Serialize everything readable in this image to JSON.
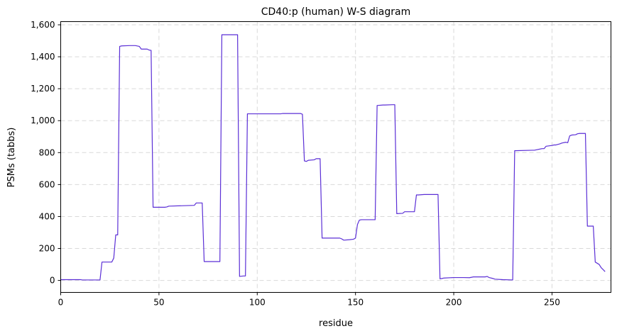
{
  "chart_data": {
    "type": "line",
    "title": "CD40:p (human) W-S diagram",
    "xlabel": "residue",
    "ylabel": "PSMs (tabbs)",
    "xlim": [
      0,
      280
    ],
    "ylim": [
      -75,
      1620
    ],
    "xticks": [
      0,
      50,
      100,
      150,
      200,
      250
    ],
    "xtick_labels": [
      "0",
      "50",
      "100",
      "150",
      "200",
      "250"
    ],
    "yticks": [
      0,
      200,
      400,
      600,
      800,
      1000,
      1200,
      1400,
      1600
    ],
    "ytick_labels": [
      "0",
      "200",
      "400",
      "600",
      "800",
      "1,000",
      "1,200",
      "1,400",
      "1,600"
    ],
    "grid": true,
    "line_color": "#5b2fd6",
    "series": [
      {
        "x": [
          0,
          10,
          11,
          20,
          21,
          26,
          27,
          28,
          29,
          30,
          31,
          35,
          38,
          40,
          41,
          44,
          45,
          46,
          47,
          53,
          54,
          55,
          68,
          69,
          72,
          73,
          81,
          82,
          90,
          91,
          93,
          94,
          95,
          100,
          112,
          113,
          122,
          123,
          124,
          125,
          126,
          129,
          130,
          132,
          133,
          142,
          143,
          144,
          147,
          149,
          150,
          151,
          152,
          153,
          154,
          160,
          161,
          164,
          165,
          169,
          170,
          171,
          174,
          175,
          180,
          181,
          182,
          185,
          186,
          191,
          192,
          193,
          194,
          195,
          200,
          205,
          208,
          210,
          216,
          217,
          218,
          220,
          221,
          225,
          230,
          231,
          240,
          241,
          245,
          246,
          247,
          250,
          251,
          252,
          254,
          255,
          257,
          258,
          259,
          260,
          262,
          263,
          264,
          265,
          266,
          267,
          268,
          271,
          272,
          274,
          275,
          276,
          277
        ],
        "y": [
          5,
          5,
          3,
          3,
          115,
          115,
          140,
          285,
          285,
          1465,
          1468,
          1470,
          1470,
          1465,
          1448,
          1448,
          1442,
          1440,
          458,
          458,
          460,
          465,
          470,
          485,
          485,
          118,
          118,
          1538,
          1538,
          25,
          28,
          28,
          1043,
          1043,
          1043,
          1045,
          1045,
          1040,
          748,
          745,
          752,
          755,
          762,
          762,
          265,
          265,
          260,
          252,
          255,
          258,
          265,
          350,
          378,
          380,
          380,
          380,
          1095,
          1098,
          1098,
          1100,
          1100,
          418,
          420,
          430,
          430,
          535,
          535,
          538,
          538,
          538,
          538,
          10,
          12,
          15,
          18,
          18,
          17,
          22,
          22,
          25,
          18,
          12,
          8,
          5,
          3,
          812,
          815,
          815,
          825,
          825,
          840,
          845,
          848,
          848,
          855,
          860,
          865,
          862,
          905,
          910,
          912,
          918,
          920,
          920,
          920,
          920,
          340,
          340,
          115,
          100,
          80,
          68,
          55
        ]
      }
    ]
  }
}
